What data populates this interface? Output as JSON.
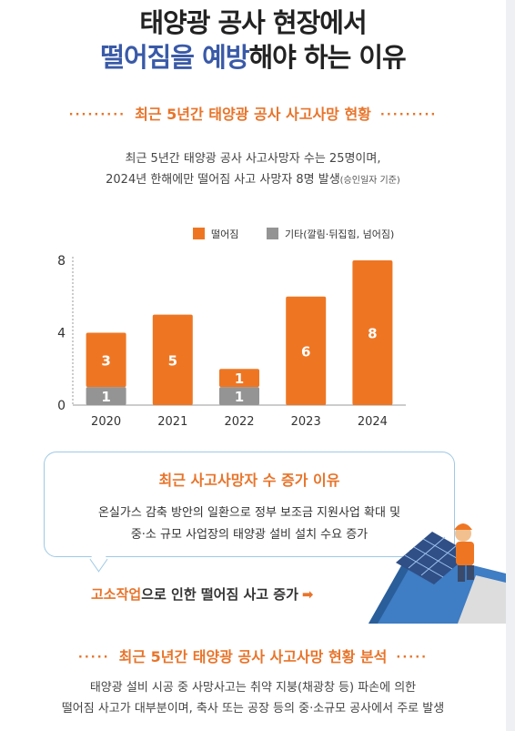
{
  "header": {
    "title_line1": "태양광 공사 현장에서",
    "title_line2_highlight": "떨어짐을 예방",
    "title_line2_rest": "해야 하는 이유"
  },
  "section1": {
    "dots": "·········",
    "heading": "최근 5년간 태양광 공사 사고사망 현황",
    "summary_line1": "최근 5년간 태양광 공사 사고사망자 수는 25명이며,",
    "summary_line2": "2024년 한해에만 떨어짐 사고 사망자 8명 발생",
    "summary_note": "(승인일자 기준)"
  },
  "chart_data": {
    "type": "bar",
    "stacked": true,
    "categories": [
      "2020",
      "2021",
      "2022",
      "2023",
      "2024"
    ],
    "series": [
      {
        "name": "떨어짐",
        "values": [
          3,
          5,
          1,
          6,
          8
        ],
        "color": "#ee7623"
      },
      {
        "name": "기타(깔림·뒤집힘, 넘어짐)",
        "values": [
          1,
          0,
          1,
          0,
          0
        ],
        "color": "#949494"
      }
    ],
    "yticks": [
      0,
      4,
      8
    ],
    "ylim": [
      0,
      8
    ],
    "legend": "top-right",
    "grid": false
  },
  "bubble": {
    "title": "최근 사고사망자 수 증가 이유",
    "line1": "온실가스 감축 방안의 일환으로 정부 보조금 지원사업 확대 및",
    "line2": "중·소 규모 사업장의 태양광 설비 설치 수요 증가"
  },
  "cause": {
    "highlight": "고소작업",
    "rest": "으로 인한 떨어짐 사고 증가",
    "arrow": "➡"
  },
  "section2": {
    "dots": "·····",
    "heading": "최근 5년간 태양광 공사 사고사망 현황 분석",
    "line1": "태양광 설비 시공 중 사망사고는 취약 지붕(채광창 등) 파손에 의한",
    "line2": "떨어짐 사고가 대부분이며, 축사 또는 공장 등의 중·소규모 공사에서 주로 발생"
  },
  "colors": {
    "accent": "#e8742a",
    "highlight_blue": "#3a5aa8",
    "bubble_border": "#9ec9e6"
  }
}
